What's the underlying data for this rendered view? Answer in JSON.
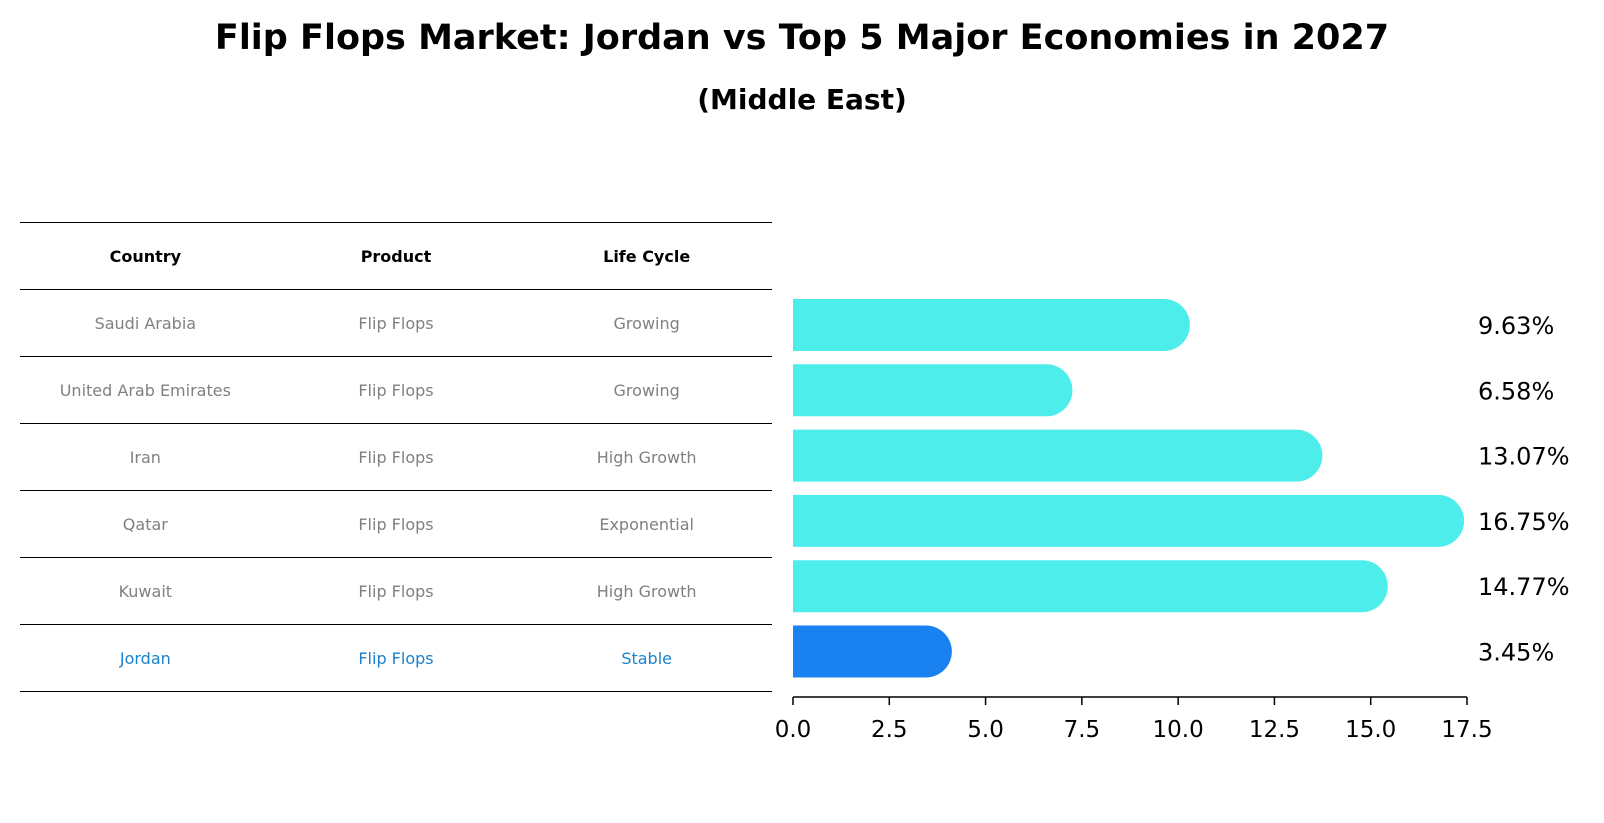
{
  "title": "Flip Flops Market: Jordan vs Top 5 Major Economies in 2027",
  "subtitle": "(Middle East)",
  "colors": {
    "bar": "#4CEDEB",
    "highlight_bar": "#1A82F0",
    "highlight_text": "#1A82CC",
    "row_text": "#808080",
    "axis": "#000000"
  },
  "table": {
    "headers": [
      "Country",
      "Product",
      "Life Cycle"
    ],
    "rows": [
      [
        "Saudi Arabia",
        "Flip Flops",
        "Growing"
      ],
      [
        "United Arab Emirates",
        "Flip Flops",
        "Growing"
      ],
      [
        "Iran",
        "Flip Flops",
        "High Growth"
      ],
      [
        "Qatar",
        "Flip Flops",
        "Exponential"
      ],
      [
        "Kuwait",
        "Flip Flops",
        "High Growth"
      ],
      [
        "Jordan",
        "Flip Flops",
        "Stable"
      ]
    ],
    "highlight_row": 5
  },
  "chart_data": {
    "type": "bar",
    "orientation": "horizontal",
    "categories": [
      "Saudi Arabia",
      "United Arab Emirates",
      "Iran",
      "Qatar",
      "Kuwait",
      "Jordan"
    ],
    "values": [
      9.63,
      6.58,
      13.07,
      16.75,
      14.77,
      3.45
    ],
    "value_labels": [
      "9.63%",
      "6.58%",
      "13.07%",
      "16.75%",
      "14.77%",
      "3.45%"
    ],
    "highlight_index": 5,
    "xlim": [
      0,
      17.5
    ],
    "xticks": [
      0,
      2.5,
      5,
      7.5,
      10,
      12.5,
      15,
      17.5
    ],
    "xtick_labels": [
      "0.0",
      "2.5",
      "5.0",
      "7.5",
      "10.0",
      "12.5",
      "15.0",
      "17.5"
    ],
    "grid": false,
    "legend": "none"
  }
}
